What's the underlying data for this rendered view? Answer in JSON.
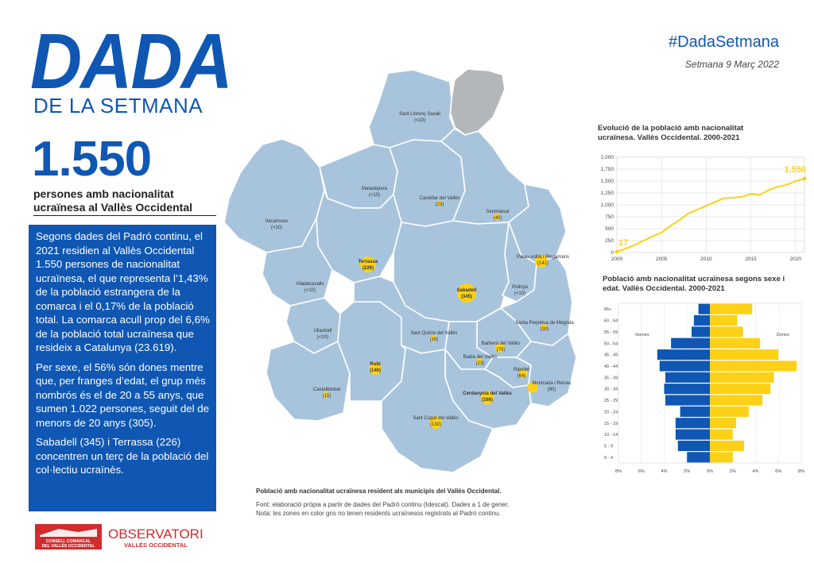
{
  "header": {
    "title": "DADA",
    "subtitle": "DE LA SETMANA",
    "hashtag": "#DadaSetmana",
    "week": "Setmana 9 Març 2022"
  },
  "highlight": {
    "number": "1.550",
    "description": "persones amb nacionalitat ucraïnesa al Vallès Occidental"
  },
  "bluebox": {
    "p1": "Segons dades del Padró continu, el 2021 residien al Vallès Occidental 1.550 persones de nacionalitat ucraïnesa, el que representa l’1,43% de la població estrangera de la comarca i el 0,17% de la població total. La comarca acull prop del 6,6% de la població total ucraïnesa que resideix a Catalunya (23.619).",
    "p2": "Per sexe, el 56% són dones mentre que, per franges d’edat, el grup més nombrós és el de 20 a 55 anys, que sumen 1.022 persones, seguit del de menors de 20 anys (305).",
    "p3": "Sabadell (345) i Terrassa (226) concentren un terç de la població del col·lectiu ucraïnès."
  },
  "map": {
    "caption": "Població amb nacionalitat ucraïnesa resident als municipis del Vallès Occidental.",
    "source1": "Font: elaboració pròpia a partir de dades del Padró continu (Idescat). Dades a 1 de gener.",
    "source2": "Nota: les zones en color gris no tenen residents ucraïnesos registrats al Padró continu.",
    "colors": {
      "land": "#a8c4dc",
      "border": "#ffffff",
      "grey": "#b4b7ba",
      "bubble": "#fcd116"
    },
    "municipalities": [
      {
        "name": "Sant Llorenç Savall",
        "value": "(<10)"
      },
      {
        "name": "Matadepera",
        "value": "(<10)"
      },
      {
        "name": "Castellar del Vallès",
        "value": "(23)"
      },
      {
        "name": "Sentmenat",
        "value": "(40)"
      },
      {
        "name": "Vacarisses",
        "value": "(<10)"
      },
      {
        "name": "Terrassa",
        "value": "(226)"
      },
      {
        "name": "Viladecavalls",
        "value": "(<10)"
      },
      {
        "name": "Sabadell",
        "value": "(345)"
      },
      {
        "name": "Palau-solità i Plegamans",
        "value": "(141)"
      },
      {
        "name": "Polinyà",
        "value": "(<10)"
      },
      {
        "name": "Santa Perpètua de Mogoda",
        "value": "(30)"
      },
      {
        "name": "Ullastrell",
        "value": "(<10)"
      },
      {
        "name": "Sant Quirze del Vallès",
        "value": "(16)"
      },
      {
        "name": "Barberà del Vallès",
        "value": "(79)"
      },
      {
        "name": "Badia del Vallès",
        "value": "(23)"
      },
      {
        "name": "Rubí",
        "value": "(140)"
      },
      {
        "name": "Ripollet",
        "value": "(64)"
      },
      {
        "name": "Montcada i Reixac",
        "value": "(90)"
      },
      {
        "name": "Castellbisbal",
        "value": "(15)"
      },
      {
        "name": "Cerdanyola del Vallès",
        "value": "(166)"
      },
      {
        "name": "Sant Cugat del Vallès",
        "value": "(130)"
      }
    ]
  },
  "chart_data": [
    {
      "type": "line",
      "title": "Evolució de la població amb nacionalitat ucraïnesa. Vallès Occidental. 2000-2021",
      "x": [
        2000,
        2001,
        2002,
        2003,
        2004,
        2005,
        2006,
        2007,
        2008,
        2009,
        2010,
        2011,
        2012,
        2013,
        2014,
        2015,
        2016,
        2017,
        2018,
        2019,
        2020,
        2021
      ],
      "values": [
        17,
        80,
        160,
        250,
        340,
        420,
        560,
        680,
        820,
        900,
        980,
        1060,
        1140,
        1150,
        1170,
        1230,
        1210,
        1310,
        1380,
        1420,
        1500,
        1550
      ],
      "ylim": [
        0,
        2000
      ],
      "yticks": [
        "0",
        "250",
        "500",
        "750",
        "1,000",
        "1,250",
        "1,500",
        "1,750",
        "2,000"
      ],
      "xticks": [
        "2000",
        "2005",
        "2010",
        "2015",
        "2020"
      ],
      "start_label": "17",
      "end_label": "1.550",
      "grid": true,
      "color": "#fcd116"
    },
    {
      "type": "bar",
      "title": "Població amb nacionalitat ucraïnesa segons sexe i edat. Vallès Occidental. 2000-2021",
      "categories": [
        "65+",
        "60 - 64",
        "55 - 59",
        "50 - 54",
        "45 - 49",
        "40 - 44",
        "35 - 39",
        "30 - 34",
        "25 - 29",
        "20 - 24",
        "15 - 19",
        "10 - 14",
        "5 - 9",
        "0 - 4"
      ],
      "series": [
        {
          "name": "Homes",
          "color": "#0f57b3",
          "values": [
            1.0,
            1.4,
            1.6,
            3.4,
            4.6,
            4.4,
            3.9,
            4.0,
            3.9,
            2.6,
            3.0,
            3.0,
            2.8,
            2.0
          ]
        },
        {
          "name": "Dones",
          "color": "#fcd116",
          "values": [
            3.7,
            2.4,
            2.9,
            4.4,
            6.0,
            7.6,
            5.6,
            5.3,
            4.6,
            3.4,
            2.3,
            2.0,
            3.0,
            2.0
          ]
        }
      ],
      "xticks": [
        "8%",
        "6%",
        "4%",
        "2%",
        "0%",
        "2%",
        "4%",
        "6%",
        "8%"
      ],
      "xlim": [
        -8,
        8
      ]
    }
  ],
  "logos": {
    "consell_line1": "CONSELL COMARCAL",
    "consell_line2": "DEL VALLÈS OCCIDENTAL",
    "observatori": "OBSERVATORI",
    "observatori_sub": "VALLÈS OCCIDENTAL"
  }
}
